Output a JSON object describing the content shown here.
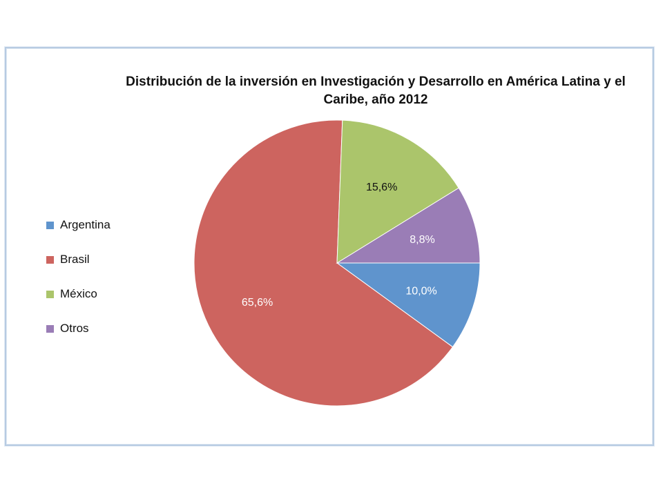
{
  "chart_data": {
    "type": "pie",
    "title": "Distribución de la inversión en Investigación y Desarrollo en América Latina y el Caribe, año 2012",
    "unit": "%",
    "legend_position": "left",
    "slices": [
      {
        "name": "Argentina",
        "value": 10.0,
        "label": "10,0%",
        "color": "#5f94cd",
        "label_color": "#ffffff"
      },
      {
        "name": "Brasil",
        "value": 65.6,
        "label": "65,6%",
        "color": "#cd645f",
        "label_color": "#ffffff"
      },
      {
        "name": "México",
        "value": 15.6,
        "label": "15,6%",
        "color": "#abc56b",
        "label_color": "#111111"
      },
      {
        "name": "Otros",
        "value": 8.8,
        "label": "8,8%",
        "color": "#9a7db6",
        "label_color": "#ffffff"
      }
    ]
  }
}
